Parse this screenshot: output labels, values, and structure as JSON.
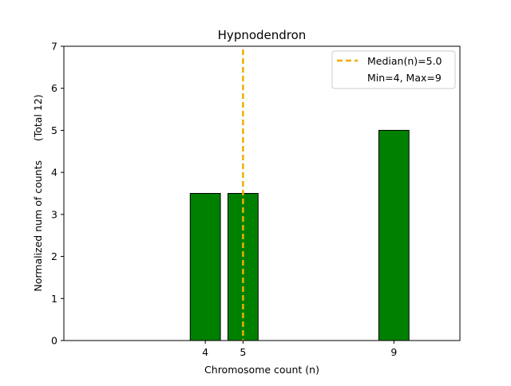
{
  "chart_data": {
    "type": "bar",
    "title": "Hypnodendron",
    "xlabel": "Chromosome count (n)",
    "ylabel": "Normalized num of counts      (Total 12)",
    "x": [
      4,
      5,
      9
    ],
    "values": [
      3.5,
      3.5,
      5
    ],
    "xticks": [
      "4",
      "5",
      "9"
    ],
    "yticks": [
      "0",
      "1",
      "2",
      "3",
      "4",
      "5",
      "6",
      "7"
    ],
    "ylim": [
      0,
      7
    ],
    "xlim": [
      0.25,
      10.75
    ],
    "bar_color": "#008000",
    "bar_edge_color": "#000000",
    "median": {
      "value": 5.0,
      "label": "Median(n)=5.0",
      "color": "#f0ad00"
    },
    "legend": {
      "placement": "top-right",
      "entries": [
        "Median(n)=5.0",
        "Min=4, Max=9"
      ]
    },
    "grid": false
  }
}
